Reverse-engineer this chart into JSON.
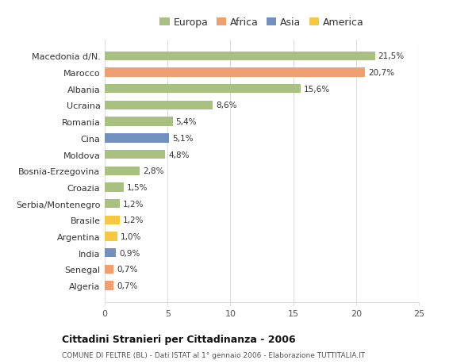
{
  "categories": [
    "Algeria",
    "Senegal",
    "India",
    "Argentina",
    "Brasile",
    "Serbia/Montenegro",
    "Croazia",
    "Bosnia-Erzegovina",
    "Moldova",
    "Cina",
    "Romania",
    "Ucraina",
    "Albania",
    "Marocco",
    "Macedonia d/N."
  ],
  "values": [
    0.7,
    0.7,
    0.9,
    1.0,
    1.2,
    1.2,
    1.5,
    2.8,
    4.8,
    5.1,
    5.4,
    8.6,
    15.6,
    20.7,
    21.5
  ],
  "labels": [
    "0,7%",
    "0,7%",
    "0,9%",
    "1,0%",
    "1,2%",
    "1,2%",
    "1,5%",
    "2,8%",
    "4,8%",
    "5,1%",
    "5,4%",
    "8,6%",
    "15,6%",
    "20,7%",
    "21,5%"
  ],
  "colors": [
    "#F0A070",
    "#F0A070",
    "#7090C0",
    "#F5C842",
    "#F5C842",
    "#A8C080",
    "#A8C080",
    "#A8C080",
    "#A8C080",
    "#7090C0",
    "#A8C080",
    "#A8C080",
    "#A8C080",
    "#F0A070",
    "#A8C080"
  ],
  "legend_labels": [
    "Europa",
    "Africa",
    "Asia",
    "America"
  ],
  "legend_colors": [
    "#A8C080",
    "#F0A070",
    "#7090C0",
    "#F5C842"
  ],
  "xlim": [
    0,
    25
  ],
  "xticks": [
    0,
    5,
    10,
    15,
    20,
    25
  ],
  "title": "Cittadini Stranieri per Cittadinanza - 2006",
  "subtitle": "COMUNE DI FELTRE (BL) - Dati ISTAT al 1° gennaio 2006 - Elaborazione TUTTITALIA.IT",
  "bg_color": "#ffffff",
  "bar_height": 0.55,
  "grid_color": "#dddddd"
}
